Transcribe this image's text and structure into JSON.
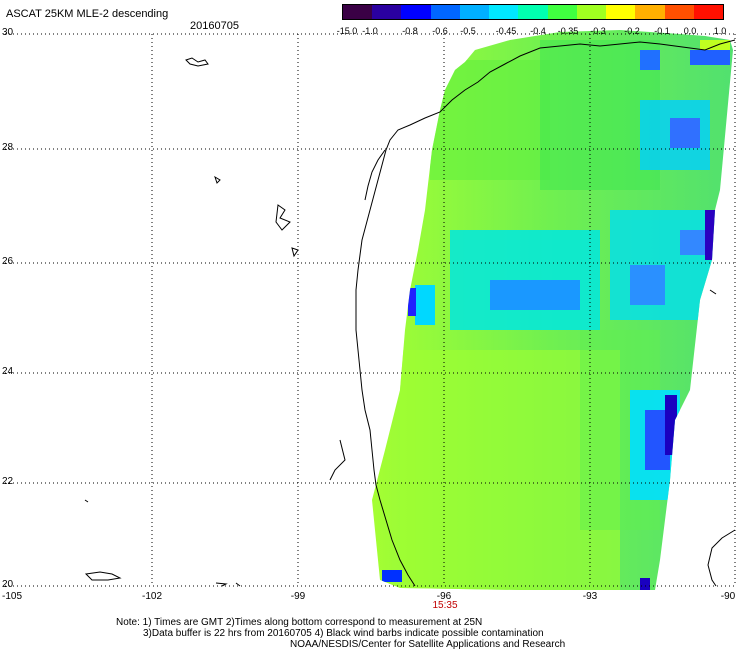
{
  "header": {
    "title": "ASCAT 25KM MLE-2 descending",
    "date": "20160705"
  },
  "colorbar": {
    "labels": [
      "-15.0",
      "-1.0",
      "-0.8",
      "-0.6",
      "-0.5",
      "-0.45",
      "-0.4",
      "-0.35",
      "-0.3",
      "-0.2",
      "-0.1",
      "0.0",
      "1.0"
    ],
    "colors": [
      "#3a0045",
      "#2a00a0",
      "#0000ff",
      "#0066ff",
      "#00b0ff",
      "#00e8ff",
      "#00ffb0",
      "#40ff40",
      "#a0ff20",
      "#ffff00",
      "#ffb000",
      "#ff5000",
      "#ff1000"
    ]
  },
  "axes": {
    "lat_labels": [
      "30",
      "28",
      "26",
      "24",
      "22",
      "20"
    ],
    "lon_labels": [
      "-105",
      "-102",
      "-99",
      "-96",
      "-93",
      "-90"
    ]
  },
  "time_label": "15:35",
  "notes": [
    "Note: 1) Times are GMT 2)Times along bottom correspond to measurement at 25N",
    "3)Data buffer is 22 hrs from 20160705 4) Black wind barbs indicate possible contamination",
    "NOAA/NESDIS/Center for Satellite Applications and Research"
  ]
}
